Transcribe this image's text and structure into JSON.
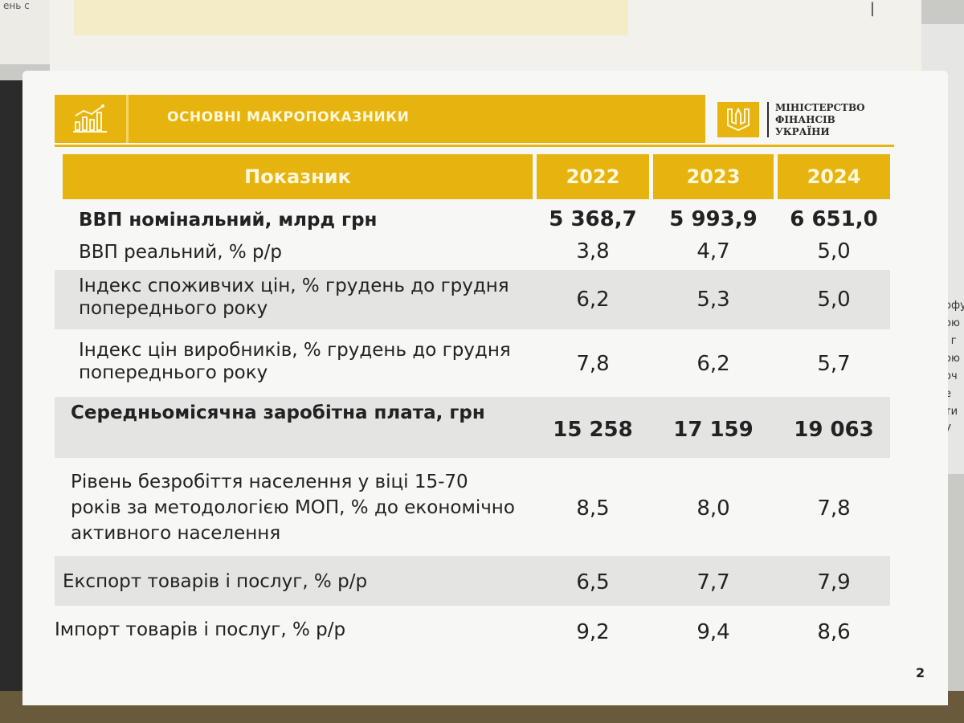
{
  "background": {
    "top_left_text": "ень с",
    "right_edge_text": [
      "офу",
      "ою",
      "і г",
      "ою",
      "оч",
      "е",
      "ти",
      "У"
    ],
    "top_right_marker": "|"
  },
  "header": {
    "title": "ОСНОВНІ МАКРОПОКАЗНИКИ",
    "ministry": [
      "МІНІСТЕРСТВО",
      "ФІНАНСІВ",
      "УКРАЇНИ"
    ]
  },
  "table": {
    "columns": [
      "Показник",
      "2022",
      "2023",
      "2024"
    ],
    "rows": [
      {
        "label": "ВВП номінальний, млрд грн",
        "values": [
          "5 368,7",
          "5 993,9",
          "6 651,0"
        ],
        "bold": true
      },
      {
        "label": "ВВП реальний,  % р/р",
        "values": [
          "3,8",
          "4,7",
          "5,0"
        ],
        "bold": false
      },
      {
        "label": "Індекс споживчих цін, % грудень до грудня попереднього року",
        "values": [
          "6,2",
          "5,3",
          "5,0"
        ],
        "bold": false
      },
      {
        "label": "Індекс цін виробників, % грудень до грудня попереднього року",
        "values": [
          "7,8",
          "6,2",
          "5,7"
        ],
        "bold": false
      },
      {
        "label": "Середньомісячна заробітна плата, грн",
        "values": [
          "15 258",
          "17 159",
          "19 063"
        ],
        "bold": true
      },
      {
        "label": "Рівень безробіття населення у віці 15-70 років за методологією МОП, % до економічно активного населення",
        "values": [
          "8,5",
          "8,0",
          "7,8"
        ],
        "bold": false
      },
      {
        "label": "Експорт товарів і послуг, % р/р",
        "values": [
          "6,5",
          "7,7",
          "7,9"
        ],
        "bold": false
      },
      {
        "label": "Імпорт товарів і послуг, % р/р",
        "values": [
          "9,2",
          "9,4",
          "8,6"
        ],
        "bold": false
      }
    ]
  },
  "page_number": "2",
  "colors": {
    "accent": "#e7b40f",
    "header_text": "#fff8dc",
    "paper": "#f7f7f5",
    "shade": "#e4e4e2"
  }
}
